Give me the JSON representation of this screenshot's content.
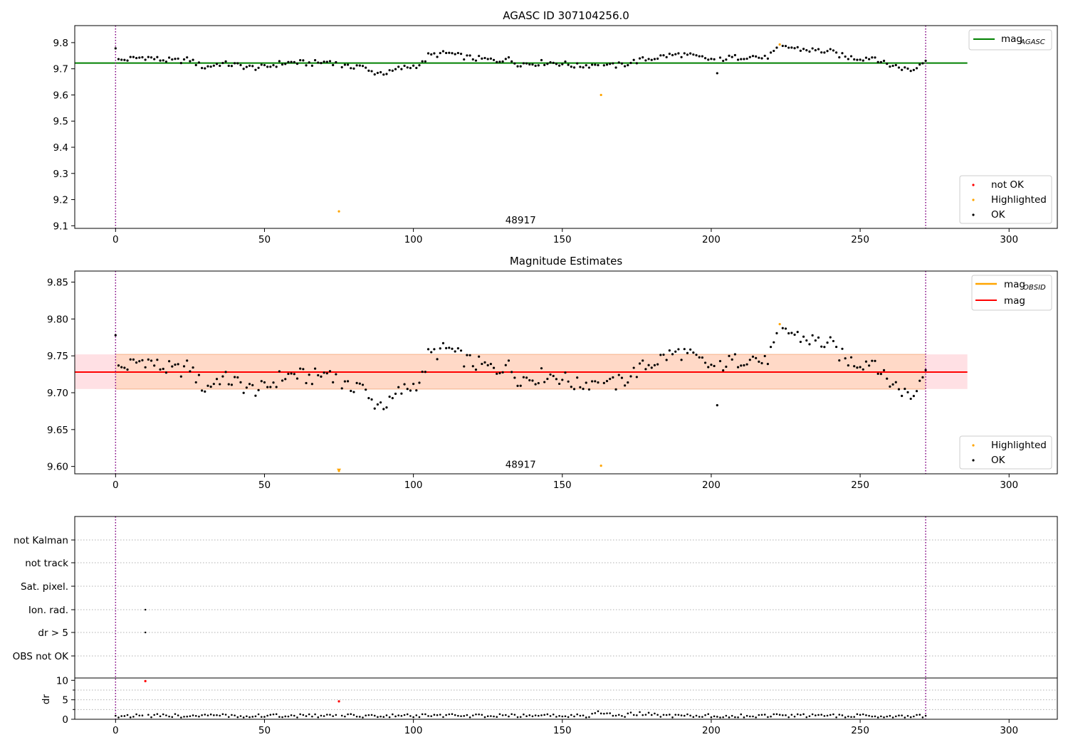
{
  "chart_data": [
    {
      "type": "scatter",
      "title": "AGASC ID 307104256.0",
      "xlim": [
        -13.7,
        316.2
      ],
      "ylim": [
        9.09,
        9.865
      ],
      "xticks": [
        0,
        50,
        100,
        150,
        200,
        250,
        300
      ],
      "yticks": [
        9.1,
        9.2,
        9.3,
        9.4,
        9.5,
        9.6,
        9.7,
        9.8
      ],
      "ytick_labels": [
        "9.1",
        "9.2",
        "9.3",
        "9.4",
        "9.5",
        "9.6",
        "9.7",
        "9.8"
      ],
      "vlines": [
        0,
        272
      ],
      "hline": {
        "y": 9.722,
        "x0": -13.7,
        "x1": 286,
        "color": "#008000"
      },
      "annotation": {
        "text": "48917",
        "x": 136,
        "y": 9.12
      },
      "legends": {
        "line": [
          {
            "label": "mag",
            "sub": "AGASC",
            "color": "#008000"
          }
        ],
        "points": [
          {
            "label": "not OK",
            "color": "#ff0000"
          },
          {
            "label": "Highlighted",
            "color": "#ffa500"
          },
          {
            "label": "OK",
            "color": "#000000"
          }
        ]
      },
      "series": [
        {
          "name": "Highlighted",
          "color": "#ffa500",
          "x": [
            75,
            163,
            223
          ],
          "y": [
            9.155,
            9.6,
            9.793
          ]
        },
        {
          "name": "OK",
          "color": "#000000",
          "from_curve": "mag"
        }
      ]
    },
    {
      "type": "scatter",
      "title": "Magnitude Estimates",
      "xlim": [
        -13.7,
        316.2
      ],
      "ylim": [
        9.59,
        9.865
      ],
      "xticks": [
        0,
        50,
        100,
        150,
        200,
        250,
        300
      ],
      "yticks": [
        9.6,
        9.65,
        9.7,
        9.75,
        9.8,
        9.85
      ],
      "ytick_labels": [
        "9.60",
        "9.65",
        "9.70",
        "9.75",
        "9.80",
        "9.85"
      ],
      "vlines": [
        0,
        272
      ],
      "hline": {
        "y": 9.728,
        "x0": -13.7,
        "x1": 286,
        "color": "#ff0000"
      },
      "band_outer": {
        "y0": 9.705,
        "y1": 9.752,
        "x0": -13.7,
        "x1": 286,
        "color": "#ffe0e4"
      },
      "band_inner": {
        "y0": 9.705,
        "y1": 9.752,
        "x0": 0,
        "x1": 272,
        "color": "#ffd9c7"
      },
      "annotation": {
        "text": "48917",
        "x": 136,
        "y": 9.602
      },
      "legends": {
        "line": [
          {
            "label": "mag",
            "sub": "OBSID",
            "color": "#ffa500"
          },
          {
            "label": "mag",
            "sub": "",
            "color": "#ff0000"
          }
        ],
        "points": [
          {
            "label": "Highlighted",
            "color": "#ffa500"
          },
          {
            "label": "OK",
            "color": "#000000"
          }
        ]
      },
      "series": [
        {
          "name": "Highlighted",
          "color": "#ffa500",
          "x": [
            75,
            163,
            223
          ],
          "y": [
            9.594,
            9.601,
            9.793
          ]
        },
        {
          "name": "OK",
          "color": "#000000",
          "from_curve": "mag"
        }
      ]
    },
    {
      "type": "scatter",
      "title": "",
      "xlim": [
        -13.7,
        316.2
      ],
      "category_axis": [
        "not Kalman",
        "not track",
        "Sat. pixel.",
        "Ion. rad.",
        "dr > 5",
        "OBS not OK"
      ],
      "vlines": [
        0,
        272
      ],
      "flag_points": [
        {
          "flag": "Ion. rad.",
          "x": 10
        },
        {
          "flag": "dr > 5",
          "x": 10
        }
      ],
      "dr": {
        "ylabel": "dr",
        "ylim": [
          0,
          10.6
        ],
        "yticks": [
          0,
          5,
          10
        ],
        "ytick_labels": [
          "0",
          "5",
          "10"
        ],
        "red_points": {
          "x": [
            10,
            75
          ],
          "y": [
            9.8,
            4.6
          ]
        }
      },
      "xticks": [
        0,
        50,
        100,
        150,
        200,
        250,
        300
      ]
    }
  ]
}
